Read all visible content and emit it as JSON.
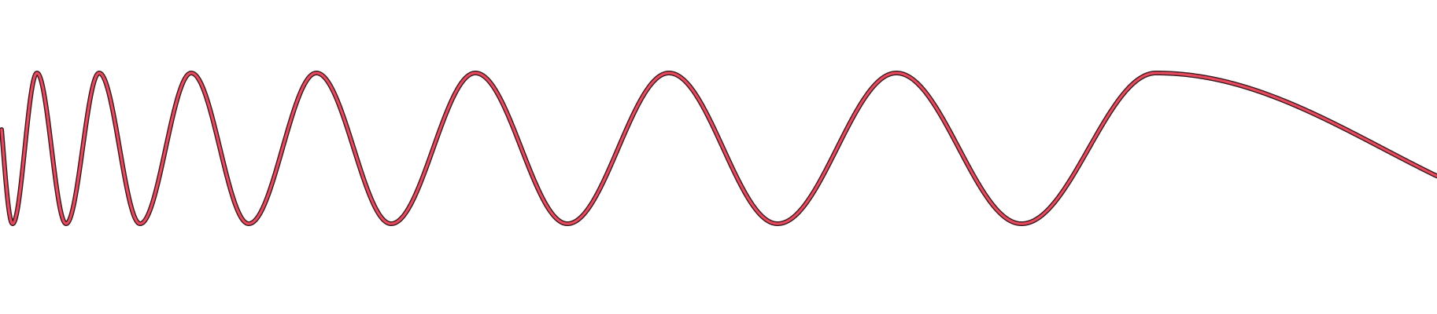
{
  "figure": {
    "kind": "chirp-sine-wave",
    "background_color": "#ffffff",
    "wave": {
      "fill_color": "#e8485b",
      "outline_color": "#3a1a1f",
      "peak_count": 8,
      "trough_count": 8,
      "frequency_trend": "decreasing-left-to-right"
    }
  }
}
